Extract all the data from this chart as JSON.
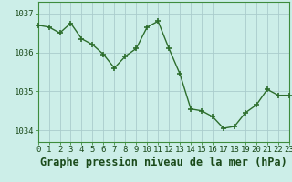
{
  "x": [
    0,
    1,
    2,
    3,
    4,
    5,
    6,
    7,
    8,
    9,
    10,
    11,
    12,
    13,
    14,
    15,
    16,
    17,
    18,
    19,
    20,
    21,
    22,
    23
  ],
  "y": [
    1036.7,
    1036.65,
    1036.5,
    1036.75,
    1036.35,
    1036.2,
    1035.95,
    1035.6,
    1035.9,
    1036.1,
    1036.65,
    1036.8,
    1036.1,
    1035.45,
    1034.55,
    1034.5,
    1034.35,
    1034.05,
    1034.1,
    1034.45,
    1034.65,
    1035.05,
    1034.9,
    1034.9
  ],
  "line_color": "#2d6e2d",
  "marker_color": "#2d6e2d",
  "bg_color": "#cceee8",
  "grid_color": "#aacccc",
  "border_color": "#3d8c3d",
  "xlabel": "Graphe pression niveau de la mer (hPa)",
  "xlabel_fontsize": 8.5,
  "xlabel_color": "#1a4a1a",
  "ylim": [
    1033.7,
    1037.3
  ],
  "yticks": [
    1034,
    1035,
    1036,
    1037
  ],
  "xticks": [
    0,
    1,
    2,
    3,
    4,
    5,
    6,
    7,
    8,
    9,
    10,
    11,
    12,
    13,
    14,
    15,
    16,
    17,
    18,
    19,
    20,
    21,
    22,
    23
  ],
  "tick_label_fontsize": 6.5,
  "tick_label_color": "#1a4a1a",
  "line_width": 1.0,
  "marker_size": 4.0,
  "marker_linewidth": 1.2
}
